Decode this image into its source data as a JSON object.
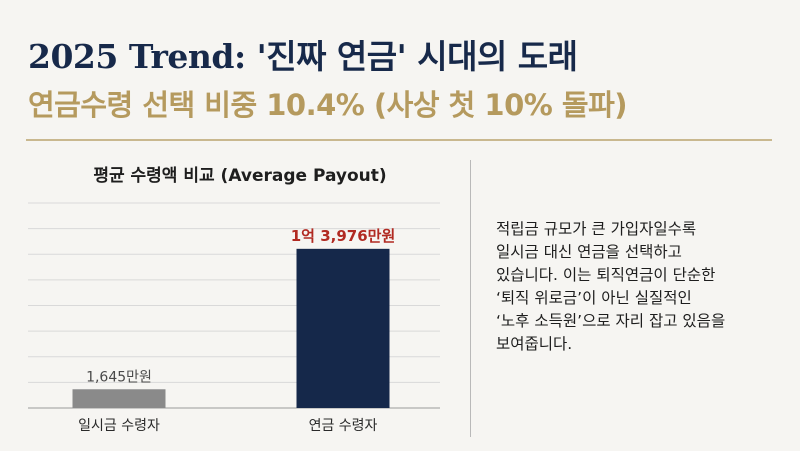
{
  "header": {
    "title": "2025 Trend: '진짜 연금' 시대의 도래",
    "subtitle": "연금수령 선택 비중 10.4% (사상 첫 10% 돌파)"
  },
  "chart_data": {
    "type": "bar",
    "title": "평균 수령액 비교 (Average Payout)",
    "categories": [
      "일시금 수령자",
      "연금 수령자"
    ],
    "values": [
      1645,
      13976
    ],
    "unit": "만원",
    "data_labels": [
      "1,645만원",
      "1억 3,976만원"
    ],
    "ylim": [
      0,
      18000
    ],
    "grid": true,
    "colors": [
      "#8a8a8a",
      "#15284a"
    ],
    "label_colors": [
      "#4a4a4a",
      "#b12a22"
    ]
  },
  "description": {
    "lines": [
      "적립금 규모가 큰 가입자일수록",
      "일시금 대신 연금을 선택하고",
      "있습니다. 이는 퇴직연금이 단순한",
      "‘퇴직 위로금’이 아닌 실질적인",
      "‘노후 소득원’으로 자리 잡고 있음을",
      "보여줍니다."
    ]
  }
}
